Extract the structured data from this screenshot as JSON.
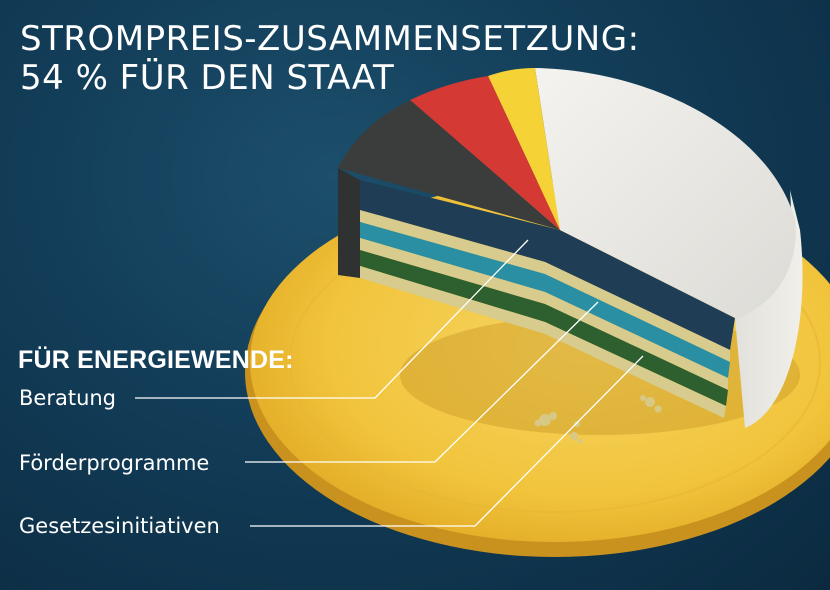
{
  "title": {
    "line1": "STROMPREIS-ZUSAMMENSETZUNG:",
    "line2": "54 % FÜR DEN STAAT"
  },
  "legend": {
    "heading": "FÜR ENERGIEWENDE:",
    "items": [
      {
        "label": "Beratung"
      },
      {
        "label": "Förderprogramme"
      },
      {
        "label": "Gesetzesinitiativen"
      }
    ]
  },
  "colors": {
    "background": "#123c57",
    "plate": "#f2c43d",
    "cake_white": "#ecebe6",
    "slice_black": "#3a3d3c",
    "slice_red": "#d43a33",
    "slice_gold": "#f5d336",
    "layer_navy": "#1f3e55",
    "layer_teal": "#2a8fa3",
    "layer_green": "#2e5f2f",
    "layer_cream": "#d7cb8e"
  }
}
